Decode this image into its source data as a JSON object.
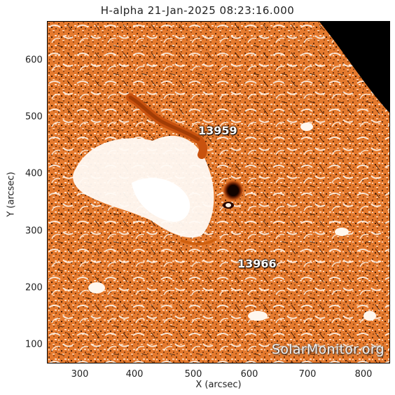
{
  "title": "H-alpha 21-Jan-2025 08:23:16.000",
  "x_axis": {
    "label": "X (arcsec)",
    "ticks": [
      "300",
      "400",
      "500",
      "600",
      "700",
      "800"
    ]
  },
  "y_axis": {
    "label": "Y (arcsec)",
    "ticks": [
      "600",
      "500",
      "400",
      "300",
      "200",
      "100"
    ]
  },
  "active_regions": [
    {
      "label": "13959"
    },
    {
      "label": "13966"
    }
  ],
  "watermark": "SolarMonitor.org",
  "colors": {
    "chromosphere": "#e0722a",
    "plage": "#ffffff",
    "sunspot": "#1a0500",
    "off_limb": "#000000",
    "speckle": "#3a1500"
  }
}
